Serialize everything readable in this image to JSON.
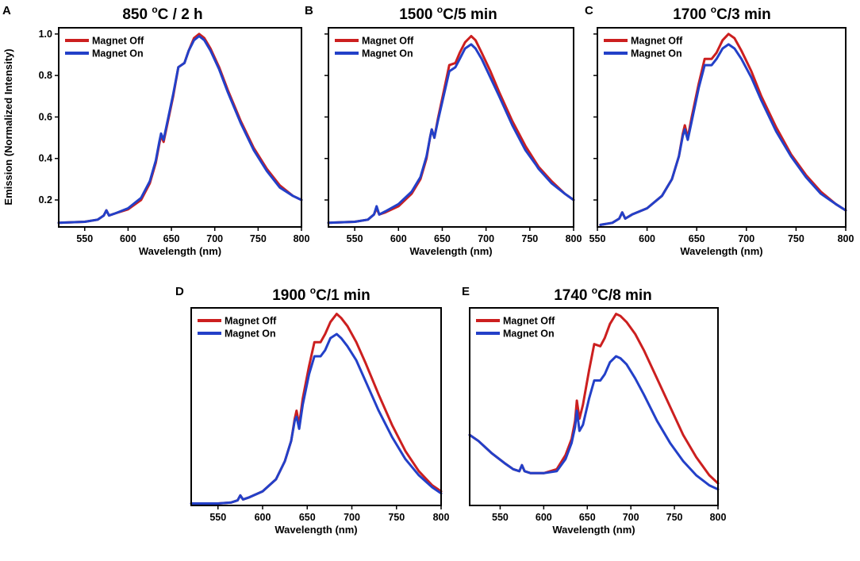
{
  "shared": {
    "ylabel": "Emission (Normalized Intensity)",
    "colors": {
      "off": "#cc1f1f",
      "on": "#2340c8"
    },
    "legend": {
      "off": "Magnet Off",
      "on": "Magnet On"
    },
    "xlabel": "Wavelength (nm)"
  },
  "chart_data": [
    {
      "id": "A",
      "letter": "A",
      "type": "line",
      "title": "850 oC / 2 h",
      "title_main": "850 ",
      "title_sup": "o",
      "title_rest": "C / 2 h",
      "xlabel": "Wavelength (nm)",
      "xlim": [
        520,
        800
      ],
      "xticks": [
        550,
        600,
        650,
        700,
        750,
        800
      ],
      "ylim": [
        0.07,
        1.03
      ],
      "yticks": [
        0.2,
        0.4,
        0.6,
        0.8,
        1.0
      ],
      "yticklabels": [
        "0.2",
        "0.4",
        "0.6",
        "0.8",
        "1.0"
      ],
      "legend_position": "top-left",
      "series": [
        {
          "name": "Magnet Off",
          "color": "#cc1f1f",
          "x": [
            520,
            550,
            565,
            572,
            575,
            578,
            585,
            600,
            615,
            625,
            632,
            636,
            638,
            641,
            645,
            652,
            658,
            665,
            670,
            676,
            682,
            688,
            695,
            705,
            715,
            730,
            745,
            760,
            775,
            790,
            800
          ],
          "y": [
            0.09,
            0.095,
            0.105,
            0.125,
            0.15,
            0.125,
            0.135,
            0.155,
            0.2,
            0.28,
            0.38,
            0.47,
            0.51,
            0.48,
            0.56,
            0.7,
            0.84,
            0.86,
            0.92,
            0.98,
            1.0,
            0.98,
            0.93,
            0.84,
            0.73,
            0.58,
            0.45,
            0.35,
            0.27,
            0.22,
            0.2
          ]
        },
        {
          "name": "Magnet On",
          "color": "#2340c8",
          "x": [
            520,
            550,
            565,
            572,
            575,
            578,
            585,
            600,
            615,
            625,
            632,
            636,
            638,
            641,
            645,
            652,
            658,
            665,
            670,
            676,
            682,
            688,
            695,
            705,
            715,
            730,
            745,
            760,
            775,
            790,
            800
          ],
          "y": [
            0.09,
            0.095,
            0.105,
            0.125,
            0.15,
            0.125,
            0.135,
            0.16,
            0.21,
            0.29,
            0.39,
            0.48,
            0.52,
            0.49,
            0.57,
            0.71,
            0.84,
            0.86,
            0.92,
            0.97,
            0.99,
            0.97,
            0.92,
            0.83,
            0.72,
            0.57,
            0.44,
            0.34,
            0.26,
            0.22,
            0.2
          ]
        }
      ]
    },
    {
      "id": "B",
      "letter": "B",
      "type": "line",
      "title": "1500 oC/5 min",
      "title_main": "1500 ",
      "title_sup": "o",
      "title_rest": "C/5 min",
      "xlabel": "Wavelength (nm)",
      "xlim": [
        520,
        800
      ],
      "xticks": [
        550,
        600,
        650,
        700,
        750,
        800
      ],
      "ylim": [
        0.07,
        1.03
      ],
      "yticks": [
        0.2,
        0.4,
        0.6,
        0.8,
        1.0
      ],
      "legend_position": "top-left",
      "series": [
        {
          "name": "Magnet Off",
          "color": "#cc1f1f",
          "x": [
            520,
            550,
            565,
            572,
            575,
            578,
            585,
            600,
            615,
            625,
            632,
            636,
            638,
            641,
            645,
            652,
            658,
            665,
            670,
            676,
            683,
            688,
            695,
            705,
            715,
            730,
            745,
            757,
            760,
            775,
            790,
            800
          ],
          "y": [
            0.09,
            0.095,
            0.105,
            0.13,
            0.16,
            0.13,
            0.14,
            0.17,
            0.23,
            0.3,
            0.4,
            0.5,
            0.54,
            0.5,
            0.59,
            0.73,
            0.85,
            0.86,
            0.91,
            0.96,
            0.99,
            0.97,
            0.91,
            0.82,
            0.72,
            0.58,
            0.46,
            0.38,
            0.36,
            0.29,
            0.23,
            0.2
          ]
        },
        {
          "name": "Magnet On",
          "color": "#2340c8",
          "x": [
            520,
            550,
            565,
            572,
            575,
            578,
            585,
            600,
            615,
            625,
            632,
            636,
            638,
            641,
            645,
            652,
            658,
            665,
            670,
            676,
            683,
            688,
            695,
            705,
            715,
            730,
            745,
            757,
            760,
            775,
            790,
            800
          ],
          "y": [
            0.09,
            0.095,
            0.105,
            0.13,
            0.17,
            0.13,
            0.145,
            0.18,
            0.24,
            0.31,
            0.41,
            0.5,
            0.54,
            0.5,
            0.58,
            0.71,
            0.82,
            0.84,
            0.88,
            0.93,
            0.95,
            0.93,
            0.88,
            0.79,
            0.7,
            0.56,
            0.44,
            0.37,
            0.35,
            0.28,
            0.23,
            0.2
          ]
        }
      ]
    },
    {
      "id": "C",
      "letter": "C",
      "type": "line",
      "title": "1700 oC/3 min",
      "title_main": "1700 ",
      "title_sup": "o",
      "title_rest": "C/3 min",
      "xlabel": "Wavelength (nm)",
      "xlim": [
        550,
        800
      ],
      "xticks": [
        550,
        600,
        650,
        700,
        750,
        800
      ],
      "ylim": [
        0.07,
        1.03
      ],
      "yticks": [
        0.2,
        0.4,
        0.6,
        0.8,
        1.0
      ],
      "legend_position": "top-left",
      "series": [
        {
          "name": "Magnet Off",
          "color": "#cc1f1f",
          "x": [
            553,
            565,
            572,
            575,
            578,
            585,
            600,
            615,
            625,
            632,
            636,
            638,
            641,
            645,
            652,
            658,
            665,
            670,
            676,
            682,
            688,
            695,
            705,
            715,
            730,
            745,
            760,
            775,
            790,
            800
          ],
          "y": [
            0.08,
            0.09,
            0.11,
            0.14,
            0.11,
            0.13,
            0.16,
            0.22,
            0.3,
            0.41,
            0.52,
            0.56,
            0.5,
            0.6,
            0.76,
            0.88,
            0.88,
            0.91,
            0.97,
            1.0,
            0.98,
            0.92,
            0.82,
            0.7,
            0.55,
            0.42,
            0.32,
            0.24,
            0.18,
            0.15
          ]
        },
        {
          "name": "Magnet On",
          "color": "#2340c8",
          "x": [
            553,
            565,
            572,
            575,
            578,
            585,
            600,
            615,
            625,
            632,
            636,
            638,
            641,
            645,
            652,
            658,
            665,
            670,
            676,
            682,
            688,
            695,
            705,
            715,
            730,
            745,
            760,
            775,
            790,
            800
          ],
          "y": [
            0.08,
            0.09,
            0.11,
            0.14,
            0.11,
            0.13,
            0.16,
            0.22,
            0.3,
            0.41,
            0.51,
            0.54,
            0.49,
            0.58,
            0.74,
            0.85,
            0.85,
            0.88,
            0.93,
            0.95,
            0.93,
            0.88,
            0.79,
            0.68,
            0.53,
            0.41,
            0.31,
            0.23,
            0.18,
            0.15
          ]
        }
      ]
    },
    {
      "id": "D",
      "letter": "D",
      "type": "line",
      "title": "1900 oC/1 min",
      "title_main": "1900 ",
      "title_sup": "o",
      "title_rest": "C/1 min",
      "xlabel": "Wavelength (nm)",
      "xlim": [
        520,
        800
      ],
      "xticks": [
        550,
        600,
        650,
        700,
        750,
        800
      ],
      "ylim": [
        0.05,
        1.03
      ],
      "legend_position": "top-left",
      "series": [
        {
          "name": "Magnet Off",
          "color": "#cc1f1f",
          "x": [
            520,
            550,
            565,
            572,
            575,
            578,
            585,
            600,
            615,
            625,
            632,
            636,
            638,
            641,
            645,
            652,
            658,
            665,
            670,
            676,
            683,
            688,
            695,
            705,
            715,
            730,
            745,
            760,
            775,
            790,
            800
          ],
          "y": [
            0.06,
            0.06,
            0.065,
            0.075,
            0.1,
            0.08,
            0.09,
            0.12,
            0.18,
            0.27,
            0.37,
            0.48,
            0.52,
            0.45,
            0.58,
            0.74,
            0.86,
            0.86,
            0.9,
            0.96,
            1.0,
            0.98,
            0.94,
            0.86,
            0.76,
            0.6,
            0.45,
            0.32,
            0.22,
            0.15,
            0.12
          ]
        },
        {
          "name": "Magnet On",
          "color": "#2340c8",
          "x": [
            520,
            550,
            565,
            572,
            575,
            578,
            585,
            600,
            615,
            625,
            632,
            636,
            638,
            641,
            645,
            652,
            658,
            665,
            670,
            676,
            683,
            688,
            695,
            705,
            715,
            730,
            745,
            760,
            775,
            790,
            800
          ],
          "y": [
            0.06,
            0.06,
            0.065,
            0.075,
            0.1,
            0.08,
            0.09,
            0.12,
            0.18,
            0.27,
            0.37,
            0.47,
            0.49,
            0.43,
            0.55,
            0.7,
            0.79,
            0.79,
            0.82,
            0.88,
            0.9,
            0.88,
            0.84,
            0.77,
            0.67,
            0.52,
            0.39,
            0.28,
            0.2,
            0.14,
            0.11
          ]
        }
      ]
    },
    {
      "id": "E",
      "letter": "E",
      "type": "line",
      "title": "1740 oC/8 min",
      "title_main": "1740 ",
      "title_sup": "o",
      "title_rest": "C/8 min",
      "xlabel": "Wavelength (nm)",
      "xlim": [
        515,
        800
      ],
      "xticks": [
        550,
        600,
        650,
        700,
        750,
        800
      ],
      "ylim": [
        0.05,
        1.03
      ],
      "legend_position": "top-left",
      "series": [
        {
          "name": "Magnet Off",
          "color": "#cc1f1f",
          "x": [
            515,
            525,
            540,
            555,
            565,
            572,
            575,
            578,
            585,
            600,
            615,
            625,
            632,
            636,
            638,
            641,
            645,
            652,
            658,
            665,
            670,
            676,
            683,
            688,
            695,
            705,
            715,
            730,
            745,
            760,
            775,
            790,
            800
          ],
          "y": [
            0.4,
            0.37,
            0.31,
            0.26,
            0.23,
            0.22,
            0.25,
            0.22,
            0.21,
            0.21,
            0.23,
            0.3,
            0.38,
            0.47,
            0.57,
            0.48,
            0.55,
            0.72,
            0.85,
            0.84,
            0.88,
            0.95,
            1.0,
            0.99,
            0.96,
            0.9,
            0.82,
            0.68,
            0.54,
            0.4,
            0.29,
            0.2,
            0.16
          ]
        },
        {
          "name": "Magnet On",
          "color": "#2340c8",
          "x": [
            515,
            525,
            540,
            555,
            565,
            572,
            575,
            578,
            585,
            600,
            615,
            625,
            632,
            636,
            638,
            641,
            645,
            652,
            658,
            665,
            670,
            676,
            683,
            688,
            695,
            705,
            715,
            730,
            745,
            760,
            775,
            790,
            800
          ],
          "y": [
            0.4,
            0.37,
            0.31,
            0.26,
            0.23,
            0.22,
            0.25,
            0.22,
            0.21,
            0.21,
            0.22,
            0.28,
            0.36,
            0.44,
            0.52,
            0.42,
            0.45,
            0.58,
            0.67,
            0.67,
            0.7,
            0.76,
            0.79,
            0.78,
            0.75,
            0.68,
            0.6,
            0.47,
            0.36,
            0.27,
            0.2,
            0.15,
            0.13
          ]
        }
      ]
    }
  ]
}
